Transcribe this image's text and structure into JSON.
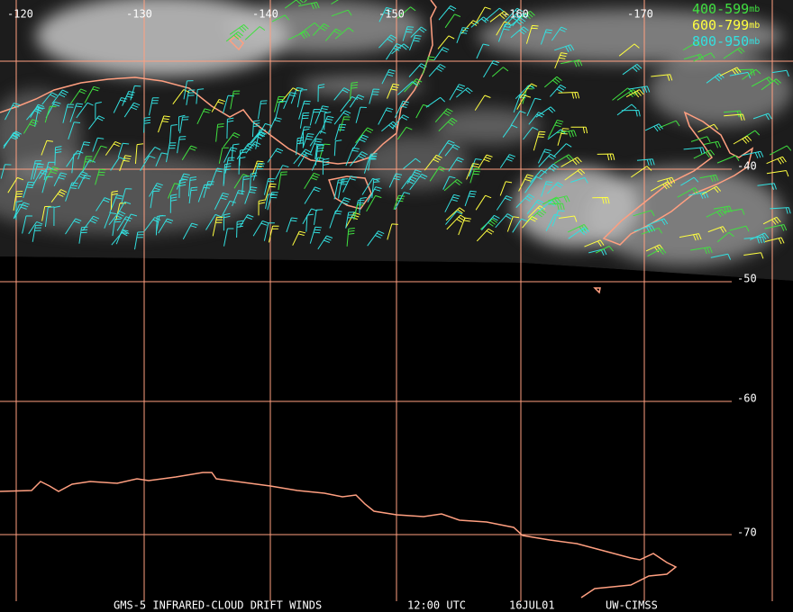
{
  "map": {
    "longitude_labels": [
      "-120",
      "-130",
      "-140",
      "-150",
      "-160",
      "-170"
    ],
    "latitude_labels": [
      "-40",
      "-50",
      "-60",
      "-70"
    ],
    "legend": [
      {
        "range": "400-599",
        "unit": "mb"
      },
      {
        "range": "600-799",
        "unit": "mb"
      },
      {
        "range": "800-950",
        "unit": "mb"
      }
    ],
    "footer": [
      "GMS-5 INFRARED-CLOUD DRIFT WINDS",
      "12:00 UTC",
      "16JUL01",
      "UW-CIMSS"
    ]
  }
}
